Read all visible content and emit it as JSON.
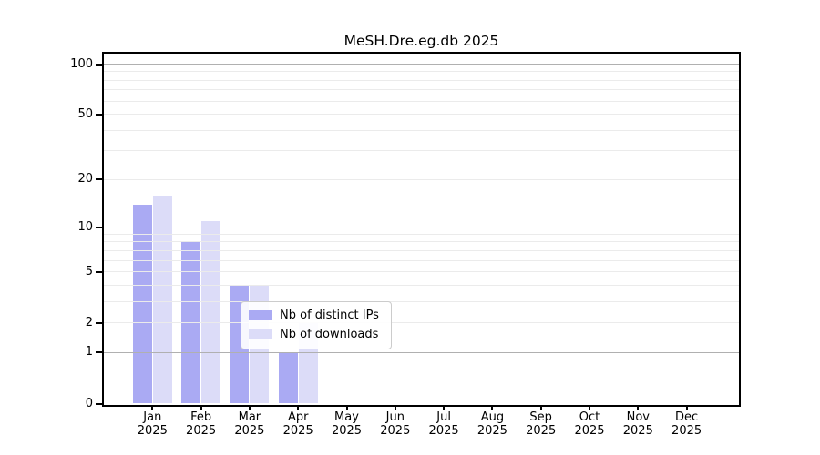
{
  "title": "MeSH.Dre.eg.db 2025",
  "chart_data": {
    "type": "bar",
    "categories": [
      "Jan",
      "Feb",
      "Mar",
      "Apr",
      "May",
      "Jun",
      "Jul",
      "Aug",
      "Sep",
      "Oct",
      "Nov",
      "Dec"
    ],
    "x_year_label": "2025",
    "series": [
      {
        "name": "Nb of distinct IPs",
        "color": "#aaaaf3",
        "values": [
          14,
          8,
          4,
          1,
          0,
          0,
          0,
          0,
          0,
          0,
          0,
          0
        ]
      },
      {
        "name": "Nb of downloads",
        "color": "#dcdcf8",
        "values": [
          16,
          11,
          4,
          2,
          0,
          0,
          0,
          0,
          0,
          0,
          0,
          0
        ]
      }
    ],
    "title": "MeSH.Dre.eg.db 2025",
    "xlabel": "",
    "ylabel": "",
    "ylim": [
      0,
      100
    ],
    "yscale": "log10(1+v)",
    "yticks_labeled": [
      0,
      1,
      2,
      5,
      10,
      20,
      50,
      100
    ],
    "gridlines_major": [
      1,
      10,
      100
    ],
    "gridlines_minor": [
      2,
      3,
      4,
      5,
      6,
      7,
      8,
      9,
      20,
      30,
      40,
      50,
      60,
      70,
      80,
      90
    ],
    "grid": true,
    "legend_position": "inside lower-center",
    "colors": {
      "major_grid": "#b0b0b0",
      "minor_grid": "#ebebeb",
      "axis": "#000000",
      "background": "#ffffff"
    }
  }
}
